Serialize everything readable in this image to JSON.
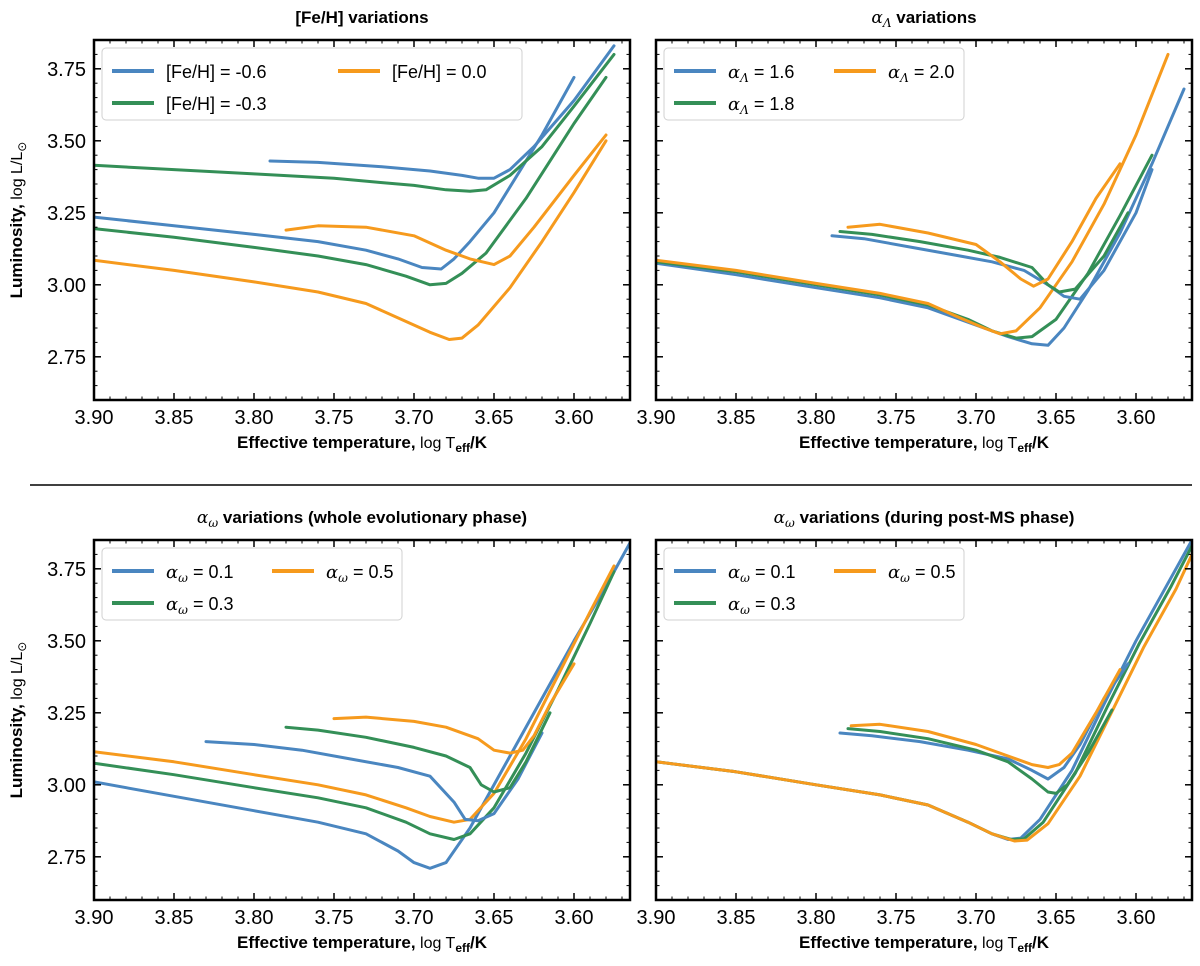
{
  "figure": {
    "divider": true,
    "colors": {
      "blue": "#4a86c0",
      "green": "#348f57",
      "orange": "#f69a1d"
    }
  },
  "chart_data": [
    {
      "type": "line",
      "title_parts": [
        "[Fe/H] variations"
      ],
      "xlabel": "Effective temperature,",
      "ylabel": "Luminosity,",
      "xlim": [
        3.9,
        3.565
      ],
      "ylim": [
        2.6,
        3.85
      ],
      "xticks": [
        "3.90",
        "3.85",
        "3.80",
        "3.75",
        "3.70",
        "3.65",
        "3.60"
      ],
      "yticks": [
        "2.75",
        "3.00",
        "3.25",
        "3.50",
        "3.75"
      ],
      "show_ylabel": true,
      "legend": [
        {
          "label": "[Fe/H] = -0.6",
          "color": "blue"
        },
        {
          "label": "[Fe/H] = -0.3",
          "color": "green"
        },
        {
          "label": "[Fe/H] = 0.0",
          "color": "orange"
        }
      ],
      "series": [
        {
          "name": "[Fe/H] = -0.6 (low-mass track)",
          "color": "blue",
          "x": [
            3.9,
            3.85,
            3.8,
            3.76,
            3.73,
            3.71,
            3.695,
            3.683,
            3.675,
            3.665,
            3.65,
            3.62,
            3.6
          ],
          "y": [
            3.235,
            3.205,
            3.175,
            3.15,
            3.12,
            3.09,
            3.06,
            3.055,
            3.09,
            3.15,
            3.25,
            3.52,
            3.72
          ]
        },
        {
          "name": "[Fe/H] = -0.3 (low-mass track)",
          "color": "green",
          "x": [
            3.9,
            3.85,
            3.8,
            3.76,
            3.73,
            3.705,
            3.69,
            3.68,
            3.67,
            3.655,
            3.63,
            3.6,
            3.58
          ],
          "y": [
            3.195,
            3.165,
            3.13,
            3.1,
            3.07,
            3.03,
            3.0,
            3.005,
            3.04,
            3.11,
            3.3,
            3.56,
            3.72
          ]
        },
        {
          "name": "[Fe/H] = 0.0 (low-mass track)",
          "color": "orange",
          "x": [
            3.9,
            3.85,
            3.8,
            3.76,
            3.73,
            3.71,
            3.69,
            3.678,
            3.67,
            3.66,
            3.64,
            3.62,
            3.6,
            3.58
          ],
          "y": [
            3.085,
            3.05,
            3.01,
            2.975,
            2.935,
            2.885,
            2.835,
            2.81,
            2.815,
            2.86,
            2.99,
            3.15,
            3.32,
            3.5
          ]
        },
        {
          "name": "[Fe/H] = -0.6 (high-mass loop)",
          "color": "blue",
          "x": [
            3.79,
            3.76,
            3.72,
            3.69,
            3.67,
            3.66,
            3.65,
            3.64,
            3.625,
            3.6,
            3.575
          ],
          "y": [
            3.43,
            3.425,
            3.41,
            3.395,
            3.38,
            3.37,
            3.37,
            3.4,
            3.48,
            3.64,
            3.83
          ]
        },
        {
          "name": "[Fe/H] = -0.3 (high-mass loop)",
          "color": "green",
          "x": [
            3.9,
            3.85,
            3.8,
            3.75,
            3.72,
            3.7,
            3.68,
            3.665,
            3.655,
            3.64,
            3.62,
            3.6,
            3.575
          ],
          "y": [
            3.415,
            3.4,
            3.385,
            3.37,
            3.355,
            3.345,
            3.33,
            3.325,
            3.33,
            3.38,
            3.48,
            3.62,
            3.8
          ]
        },
        {
          "name": "[Fe/H] = 0.0 (high-mass loop)",
          "color": "orange",
          "x": [
            3.78,
            3.76,
            3.73,
            3.7,
            3.68,
            3.665,
            3.65,
            3.64,
            3.625,
            3.6,
            3.58
          ],
          "y": [
            3.19,
            3.205,
            3.2,
            3.17,
            3.12,
            3.09,
            3.07,
            3.1,
            3.2,
            3.38,
            3.52
          ]
        }
      ]
    },
    {
      "type": "line",
      "title_parts": [
        "α",
        "Λ",
        " variations"
      ],
      "xlabel": "Effective temperature,",
      "ylabel": "Luminosity,",
      "xlim": [
        3.9,
        3.565
      ],
      "ylim": [
        2.6,
        3.85
      ],
      "xticks": [
        "3.90",
        "3.85",
        "3.80",
        "3.75",
        "3.70",
        "3.65",
        "3.60"
      ],
      "yticks": [],
      "show_ylabel": false,
      "legend": [
        {
          "label": "α",
          "sub": "Λ",
          "value": " = 1.6",
          "color": "blue"
        },
        {
          "label": "α",
          "sub": "Λ",
          "value": " = 1.8",
          "color": "green"
        },
        {
          "label": "α",
          "sub": "Λ",
          "value": " = 2.0",
          "color": "orange"
        }
      ],
      "series": [
        {
          "name": "α_Λ = 1.6 (low-mass)",
          "color": "blue",
          "x": [
            3.9,
            3.85,
            3.8,
            3.76,
            3.73,
            3.7,
            3.68,
            3.665,
            3.655,
            3.645,
            3.63,
            3.61,
            3.59,
            3.57
          ],
          "y": [
            3.075,
            3.035,
            2.99,
            2.955,
            2.92,
            2.86,
            2.82,
            2.795,
            2.79,
            2.85,
            2.98,
            3.18,
            3.42,
            3.68
          ]
        },
        {
          "name": "α_Λ = 1.8 (low-mass)",
          "color": "green",
          "x": [
            3.9,
            3.85,
            3.8,
            3.76,
            3.73,
            3.705,
            3.69,
            3.675,
            3.665,
            3.65,
            3.63,
            3.61,
            3.59
          ],
          "y": [
            3.08,
            3.045,
            3.0,
            2.965,
            2.93,
            2.88,
            2.84,
            2.815,
            2.82,
            2.88,
            3.04,
            3.24,
            3.45
          ]
        },
        {
          "name": "α_Λ = 2.0 (low-mass)",
          "color": "orange",
          "x": [
            3.9,
            3.85,
            3.8,
            3.76,
            3.73,
            3.71,
            3.695,
            3.685,
            3.675,
            3.66,
            3.64,
            3.62,
            3.6,
            3.58
          ],
          "y": [
            3.085,
            3.05,
            3.005,
            2.97,
            2.935,
            2.885,
            2.85,
            2.83,
            2.84,
            2.92,
            3.08,
            3.28,
            3.52,
            3.8
          ]
        },
        {
          "name": "α_Λ = 1.6 (loop)",
          "color": "blue",
          "x": [
            3.79,
            3.77,
            3.74,
            3.71,
            3.69,
            3.67,
            3.655,
            3.645,
            3.635,
            3.62,
            3.6,
            3.59
          ],
          "y": [
            3.17,
            3.16,
            3.13,
            3.1,
            3.08,
            3.05,
            3.0,
            2.96,
            2.95,
            3.05,
            3.25,
            3.4
          ]
        },
        {
          "name": "α_Λ = 1.8 (loop)",
          "color": "green",
          "x": [
            3.785,
            3.765,
            3.735,
            3.705,
            3.685,
            3.665,
            3.655,
            3.648,
            3.638,
            3.62,
            3.605
          ],
          "y": [
            3.185,
            3.175,
            3.15,
            3.12,
            3.095,
            3.06,
            3.0,
            2.975,
            2.985,
            3.1,
            3.25
          ]
        },
        {
          "name": "α_Λ = 2.0 (loop)",
          "color": "orange",
          "x": [
            3.78,
            3.76,
            3.73,
            3.7,
            3.685,
            3.672,
            3.664,
            3.655,
            3.64,
            3.625,
            3.61
          ],
          "y": [
            3.2,
            3.21,
            3.18,
            3.14,
            3.08,
            3.02,
            2.995,
            3.02,
            3.15,
            3.3,
            3.42
          ]
        }
      ]
    },
    {
      "type": "line",
      "title_parts": [
        "α",
        "ω",
        " variations (whole evolutionary phase)"
      ],
      "xlabel": "Effective temperature,",
      "ylabel": "Luminosity,",
      "xlim": [
        3.9,
        3.565
      ],
      "ylim": [
        2.6,
        3.85
      ],
      "xticks": [
        "3.90",
        "3.85",
        "3.80",
        "3.75",
        "3.70",
        "3.65",
        "3.60"
      ],
      "yticks": [
        "2.75",
        "3.00",
        "3.25",
        "3.50",
        "3.75"
      ],
      "show_ylabel": true,
      "legend": [
        {
          "label": "α",
          "sub": "ω",
          "value": " = 0.1",
          "color": "blue"
        },
        {
          "label": "α",
          "sub": "ω",
          "value": " = 0.3",
          "color": "green"
        },
        {
          "label": "α",
          "sub": "ω",
          "value": " = 0.5",
          "color": "orange"
        }
      ],
      "series": [
        {
          "name": "α_ω = 0.1 (low-mass)",
          "color": "blue",
          "x": [
            3.9,
            3.85,
            3.8,
            3.76,
            3.73,
            3.71,
            3.7,
            3.69,
            3.68,
            3.665,
            3.645,
            3.62,
            3.6,
            3.58,
            3.565
          ],
          "y": [
            3.01,
            2.96,
            2.91,
            2.87,
            2.83,
            2.77,
            2.73,
            2.71,
            2.73,
            2.85,
            3.05,
            3.3,
            3.5,
            3.69,
            3.84
          ]
        },
        {
          "name": "α_ω = 0.3 (low-mass)",
          "color": "green",
          "x": [
            3.9,
            3.85,
            3.8,
            3.76,
            3.73,
            3.705,
            3.69,
            3.675,
            3.665,
            3.65,
            3.63,
            3.61,
            3.59,
            3.575
          ],
          "y": [
            3.075,
            3.035,
            2.99,
            2.955,
            2.92,
            2.87,
            2.83,
            2.81,
            2.83,
            2.92,
            3.11,
            3.33,
            3.56,
            3.74
          ]
        },
        {
          "name": "α_ω = 0.5 (low-mass)",
          "color": "orange",
          "x": [
            3.9,
            3.85,
            3.8,
            3.76,
            3.73,
            3.705,
            3.69,
            3.675,
            3.665,
            3.65,
            3.63,
            3.61,
            3.59,
            3.575
          ],
          "y": [
            3.115,
            3.08,
            3.035,
            3.0,
            2.965,
            2.92,
            2.89,
            2.87,
            2.88,
            2.97,
            3.16,
            3.38,
            3.6,
            3.76
          ]
        },
        {
          "name": "α_ω = 0.1 (loop)",
          "color": "blue",
          "x": [
            3.83,
            3.8,
            3.77,
            3.74,
            3.71,
            3.69,
            3.675,
            3.668,
            3.66,
            3.65,
            3.635,
            3.62
          ],
          "y": [
            3.15,
            3.14,
            3.12,
            3.09,
            3.06,
            3.03,
            2.94,
            2.88,
            2.875,
            2.9,
            3.02,
            3.18
          ]
        },
        {
          "name": "α_ω = 0.3 (loop)",
          "color": "green",
          "x": [
            3.78,
            3.76,
            3.73,
            3.7,
            3.68,
            3.665,
            3.658,
            3.65,
            3.64,
            3.63,
            3.615
          ],
          "y": [
            3.2,
            3.19,
            3.165,
            3.13,
            3.1,
            3.06,
            3.0,
            2.975,
            2.99,
            3.08,
            3.25
          ]
        },
        {
          "name": "α_ω = 0.5 (loop)",
          "color": "orange",
          "x": [
            3.75,
            3.73,
            3.7,
            3.68,
            3.66,
            3.65,
            3.64,
            3.632,
            3.625,
            3.615,
            3.6
          ],
          "y": [
            3.23,
            3.235,
            3.22,
            3.2,
            3.16,
            3.12,
            3.11,
            3.12,
            3.17,
            3.28,
            3.42
          ]
        }
      ]
    },
    {
      "type": "line",
      "title_parts": [
        "α",
        "ω",
        " variations (during post-MS phase)"
      ],
      "xlabel": "Effective temperature,",
      "ylabel": "Luminosity,",
      "xlim": [
        3.9,
        3.565
      ],
      "ylim": [
        2.6,
        3.85
      ],
      "xticks": [
        "3.90",
        "3.85",
        "3.80",
        "3.75",
        "3.70",
        "3.65",
        "3.60"
      ],
      "yticks": [],
      "show_ylabel": false,
      "legend": [
        {
          "label": "α",
          "sub": "ω",
          "value": " = 0.1",
          "color": "blue"
        },
        {
          "label": "α",
          "sub": "ω",
          "value": " = 0.3",
          "color": "green"
        },
        {
          "label": "α",
          "sub": "ω",
          "value": " = 0.5",
          "color": "orange"
        }
      ],
      "series": [
        {
          "name": "α_ω = 0.1 (low-mass)",
          "color": "blue",
          "x": [
            3.9,
            3.85,
            3.8,
            3.76,
            3.73,
            3.705,
            3.69,
            3.68,
            3.672,
            3.66,
            3.64,
            3.62,
            3.6,
            3.58,
            3.565
          ],
          "y": [
            3.08,
            3.045,
            3.0,
            2.965,
            2.93,
            2.87,
            2.83,
            2.81,
            2.815,
            2.88,
            3.05,
            3.28,
            3.5,
            3.7,
            3.85
          ]
        },
        {
          "name": "α_ω = 0.3 (low-mass)",
          "color": "green",
          "x": [
            3.9,
            3.85,
            3.8,
            3.76,
            3.73,
            3.705,
            3.69,
            3.678,
            3.67,
            3.658,
            3.638,
            3.618,
            3.598,
            3.578,
            3.565
          ],
          "y": [
            3.08,
            3.045,
            3.0,
            2.965,
            2.93,
            2.87,
            2.83,
            2.81,
            2.812,
            2.87,
            3.04,
            3.27,
            3.49,
            3.69,
            3.83
          ]
        },
        {
          "name": "α_ω = 0.5 (low-mass)",
          "color": "orange",
          "x": [
            3.9,
            3.85,
            3.8,
            3.76,
            3.73,
            3.705,
            3.69,
            3.676,
            3.668,
            3.655,
            3.635,
            3.615,
            3.595,
            3.575,
            3.565
          ],
          "y": [
            3.08,
            3.045,
            3.0,
            2.965,
            2.93,
            2.87,
            2.83,
            2.805,
            2.808,
            2.865,
            3.03,
            3.255,
            3.48,
            3.68,
            3.8
          ]
        },
        {
          "name": "α_ω = 0.1 (loop)",
          "color": "blue",
          "x": [
            3.785,
            3.765,
            3.735,
            3.705,
            3.68,
            3.665,
            3.655,
            3.645,
            3.635,
            3.62,
            3.605
          ],
          "y": [
            3.18,
            3.17,
            3.15,
            3.12,
            3.09,
            3.05,
            3.02,
            3.06,
            3.14,
            3.3,
            3.42
          ]
        },
        {
          "name": "α_ω = 0.3 (loop)",
          "color": "green",
          "x": [
            3.78,
            3.76,
            3.73,
            3.7,
            3.68,
            3.665,
            3.655,
            3.65,
            3.643,
            3.63,
            3.615
          ],
          "y": [
            3.195,
            3.185,
            3.16,
            3.12,
            3.08,
            3.02,
            2.975,
            2.97,
            3.0,
            3.11,
            3.26
          ]
        },
        {
          "name": "α_ω = 0.5 (loop)",
          "color": "orange",
          "x": [
            3.778,
            3.76,
            3.73,
            3.7,
            3.68,
            3.665,
            3.655,
            3.648,
            3.64,
            3.625,
            3.61
          ],
          "y": [
            3.205,
            3.21,
            3.185,
            3.14,
            3.1,
            3.07,
            3.06,
            3.07,
            3.11,
            3.25,
            3.4
          ]
        }
      ]
    }
  ]
}
